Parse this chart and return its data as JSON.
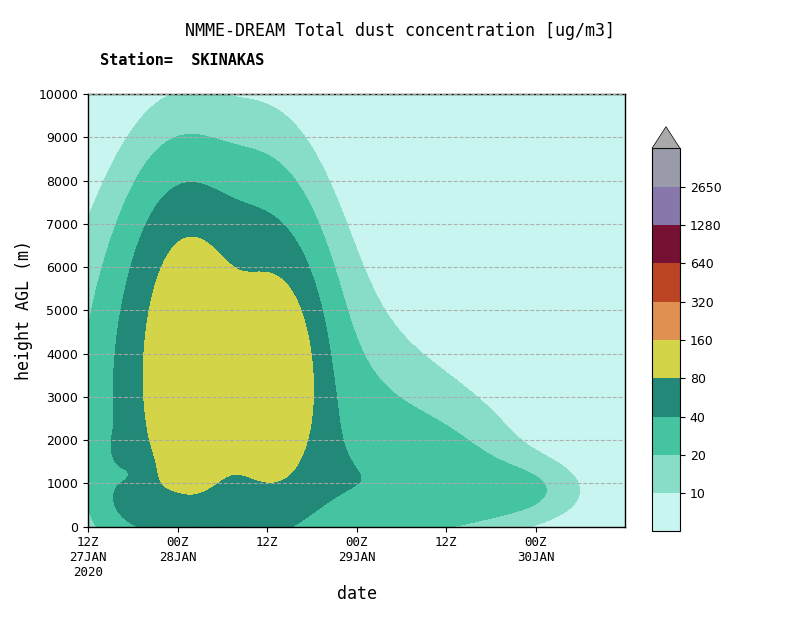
{
  "title": "NMME-DREAM Total dust concentration [ug/m3]",
  "subtitle": "Station=  SKINAKAS",
  "xlabel": "date",
  "ylabel": "height AGL (m)",
  "xlim": [
    0,
    72
  ],
  "ylim": [
    0,
    10000
  ],
  "yticks": [
    0,
    1000,
    2000,
    3000,
    4000,
    5000,
    6000,
    7000,
    8000,
    9000,
    10000
  ],
  "xtick_labels": [
    "12Z\n27JAN\n2020",
    "00Z\n28JAN",
    "12Z",
    "00Z\n29JAN",
    "12Z",
    "00Z\n30JAN"
  ],
  "xtick_positions": [
    0,
    12,
    24,
    36,
    48,
    60
  ],
  "levels": [
    10,
    20,
    40,
    80,
    160,
    320,
    640,
    1280,
    2650
  ],
  "colors": [
    "#c8f5ef",
    "#88ddc8",
    "#44c4a0",
    "#228877",
    "#d4d448",
    "#e09050",
    "#bb4422",
    "#771133",
    "#8877aa",
    "#999aaa"
  ],
  "background_color": "#ffffff",
  "title_fontsize": 12,
  "subtitle_fontsize": 11,
  "label_fontsize": 12,
  "tick_fontsize": 9
}
